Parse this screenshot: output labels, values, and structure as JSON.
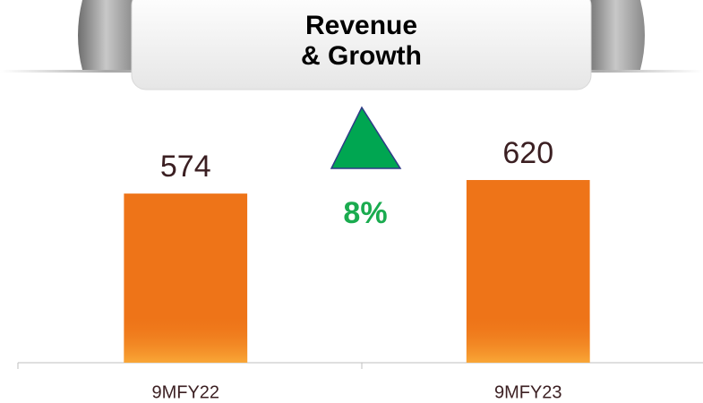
{
  "chart_data": {
    "type": "bar",
    "title": "Revenue\n& Growth",
    "categories": [
      "9MFY22",
      "9MFY23"
    ],
    "values": [
      574,
      620
    ],
    "color": "#ee7418",
    "annotation": "8%",
    "annotation_color": "#1aab4f",
    "ylim": [
      0,
      1000
    ],
    "grid": false
  }
}
